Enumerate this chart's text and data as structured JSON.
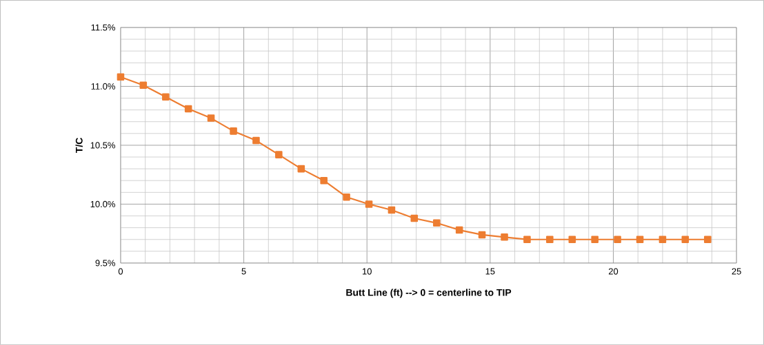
{
  "chart_data": {
    "type": "line",
    "xlabel": "Butt Line (ft) --> 0 = centerline to TIP",
    "ylabel": "T/C",
    "x": [
      0,
      0.92,
      1.83,
      2.75,
      3.67,
      4.58,
      5.5,
      6.42,
      7.33,
      8.25,
      9.17,
      10.08,
      11,
      11.92,
      12.83,
      13.75,
      14.67,
      15.58,
      16.5,
      17.42,
      18.33,
      19.25,
      20.17,
      21.08,
      22,
      22.92,
      23.83
    ],
    "series": [
      {
        "color": "#ed7d31",
        "values": [
          11.08,
          11.01,
          10.91,
          10.81,
          10.73,
          10.62,
          10.54,
          10.42,
          10.3,
          10.2,
          10.06,
          10.0,
          9.95,
          9.88,
          9.84,
          9.78,
          9.74,
          9.72,
          9.7,
          9.7,
          9.7,
          9.7,
          9.7,
          9.7,
          9.7,
          9.7,
          9.7
        ]
      }
    ],
    "xlim": [
      0,
      25
    ],
    "xticks": [
      0,
      5,
      10,
      15,
      20,
      25
    ],
    "ylim": [
      9.5,
      11.5
    ],
    "yticks": [
      {
        "value": 9.5,
        "label": "9.5%"
      },
      {
        "value": 10.0,
        "label": "10.0%"
      },
      {
        "value": 10.5,
        "label": "10.5%"
      },
      {
        "value": 11.0,
        "label": "11.0%"
      },
      {
        "value": 11.5,
        "label": "11.5%"
      }
    ],
    "grid": true,
    "marker": "square",
    "line_style": "solid"
  }
}
